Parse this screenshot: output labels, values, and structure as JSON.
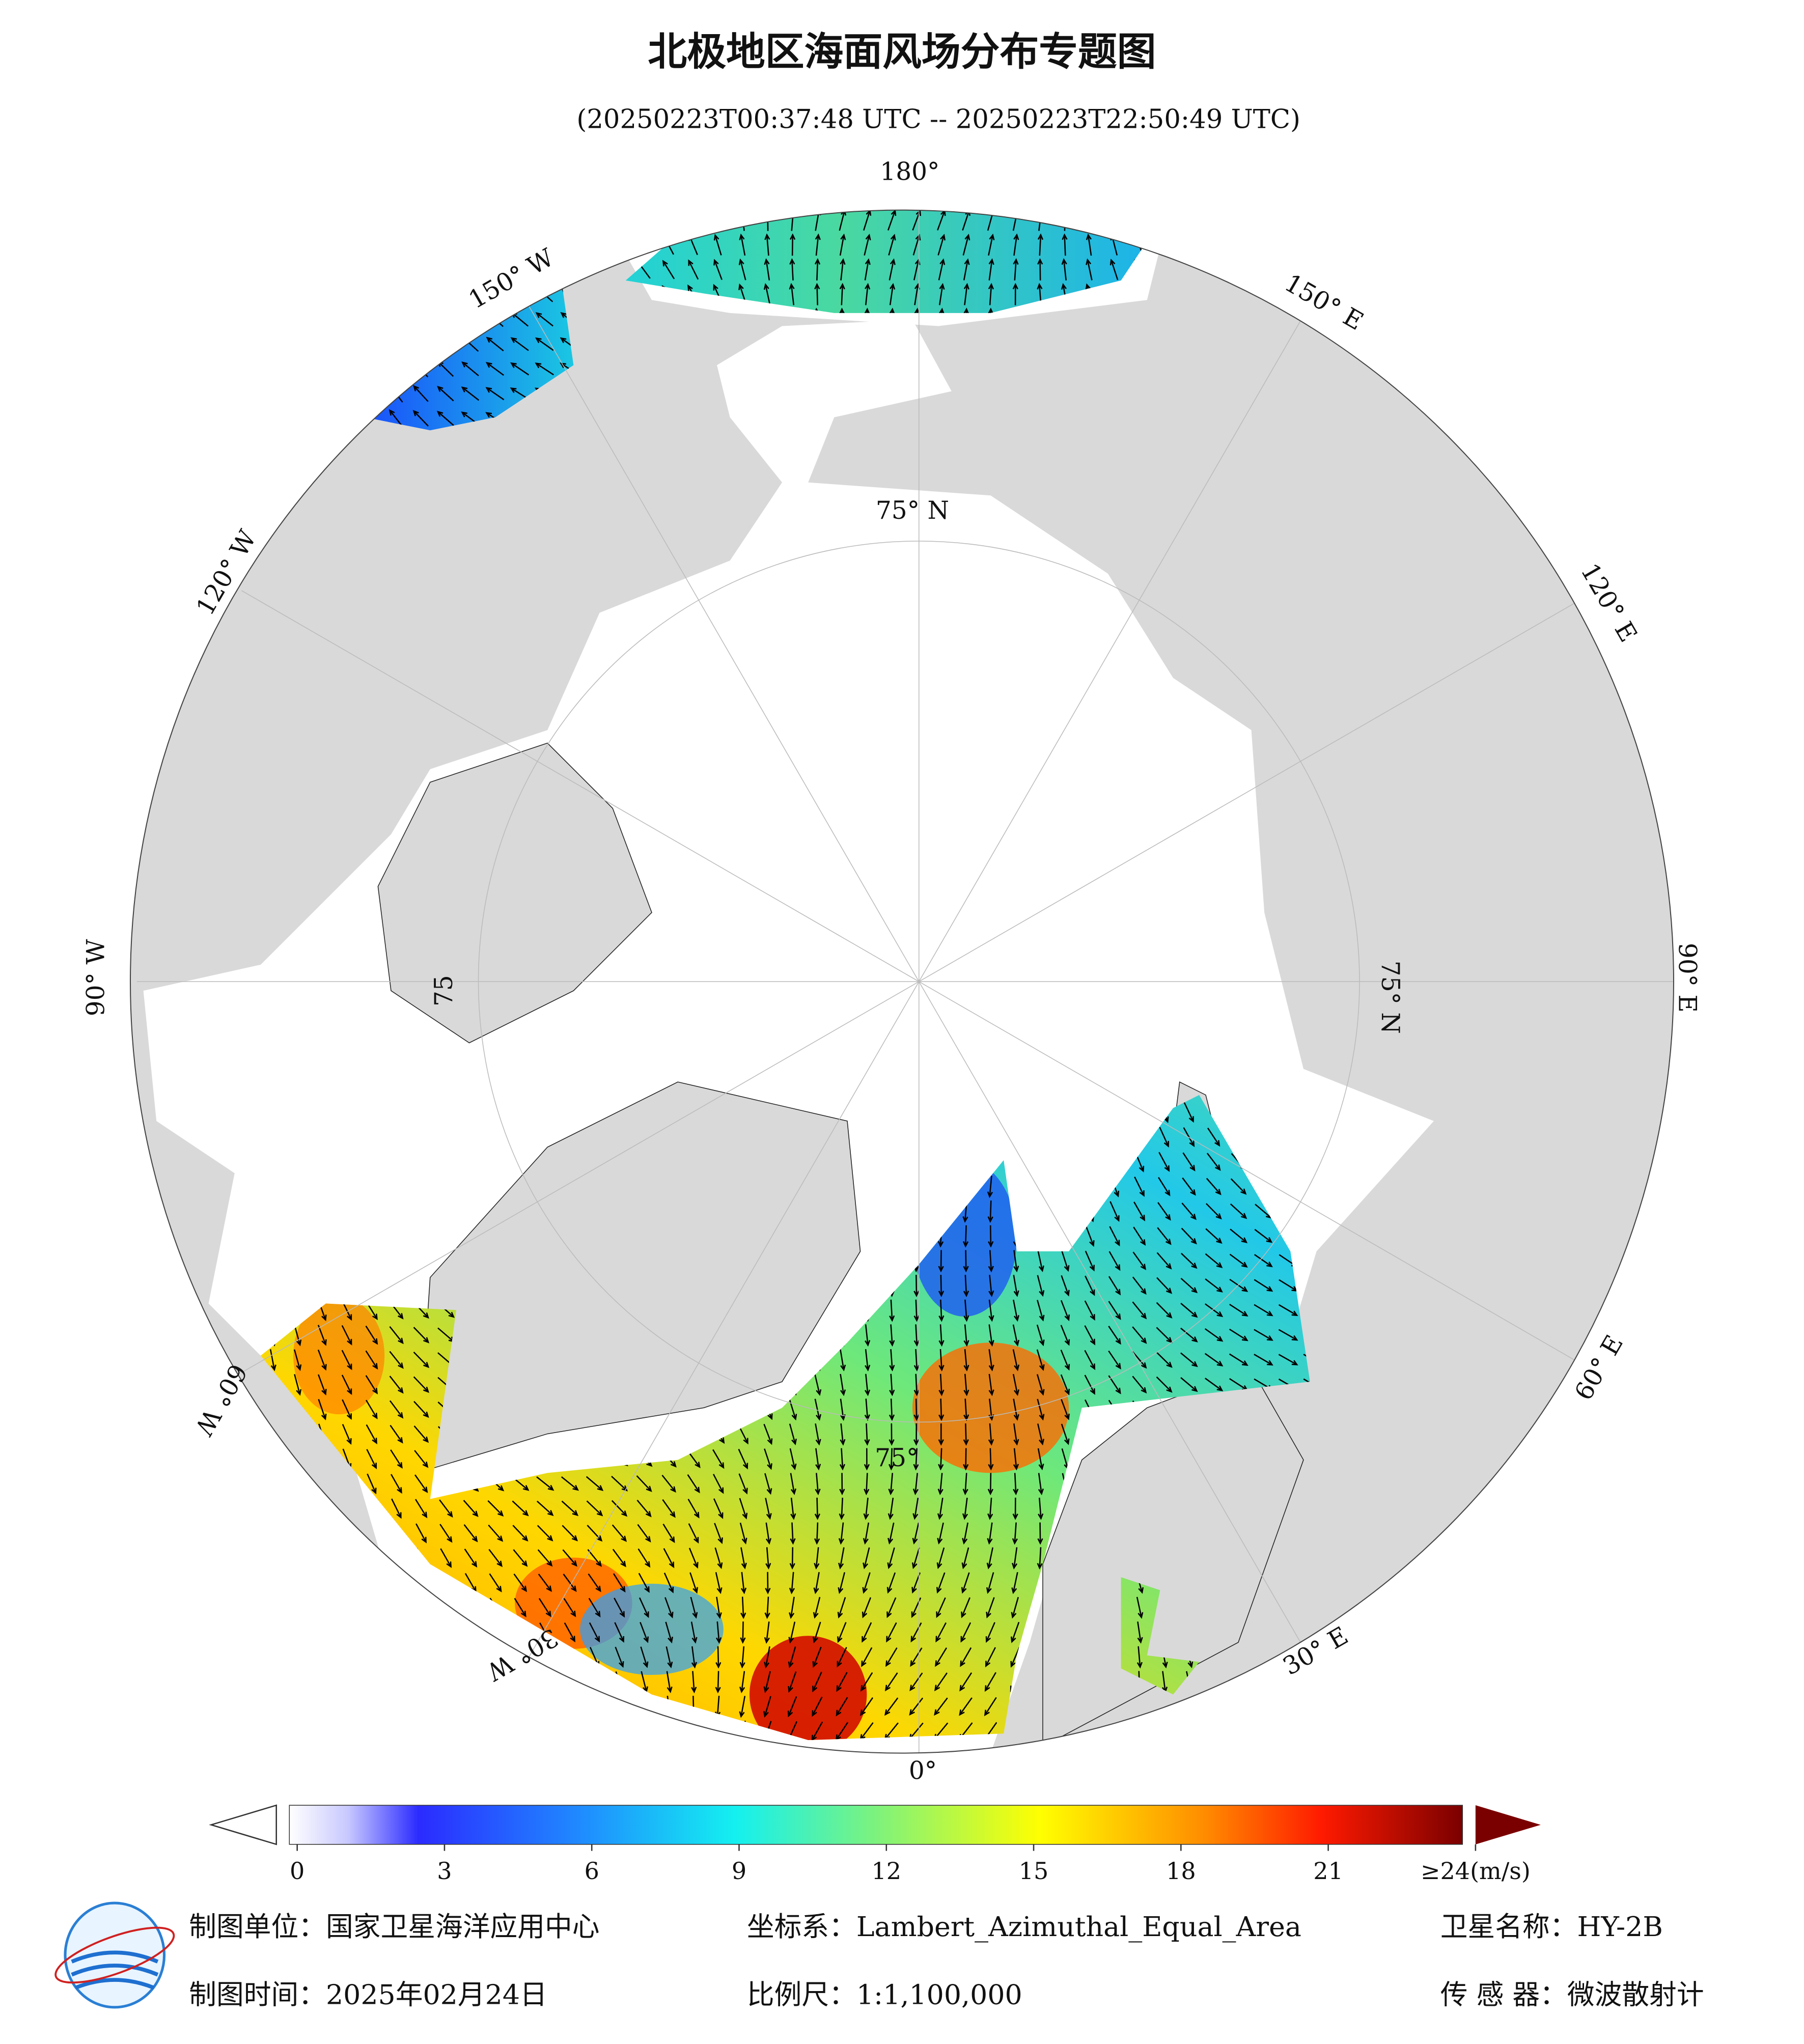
{
  "header": {
    "title": "北极地区海面风场分布专题图",
    "subtitle": "(20250223T00:37:48 UTC -- 20250223T22:50:49 UTC)"
  },
  "map": {
    "longitude_labels": [
      "180°",
      "150° E",
      "120° E",
      "90° E",
      "60° E",
      "30° E",
      "0°",
      "30° W",
      "60° W",
      "90° W",
      "120° W",
      "150° W"
    ],
    "latitude_labels": [
      "75° N",
      "75° N",
      "75",
      "75°"
    ]
  },
  "colorbar": {
    "ticks": [
      0,
      3,
      6,
      9,
      12,
      15,
      18,
      21,
      {
        "value": 24,
        "label": "≥24(m/s)"
      }
    ]
  },
  "footer": {
    "items": [
      "制图单位：国家卫星海洋应用中心",
      "坐标系：Lambert_Azimuthal_Equal_Area",
      "卫星名称：HY-2B",
      "制图时间：2025年02月24日",
      "比例尺：1:1,100,000",
      "传 感 器：微波散射计"
    ]
  }
}
